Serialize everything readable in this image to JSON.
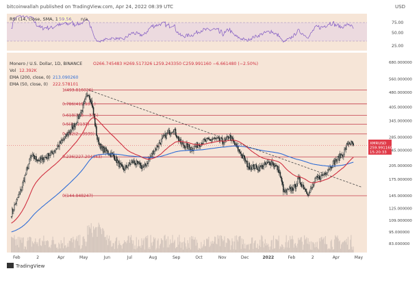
{
  "header": {
    "published": "bitcoinwallah published on TradingView.com, Apr 24, 2022 08:39 UTC",
    "currency": "USD"
  },
  "rsi_panel": {
    "label": "RSI (14, close, SMA, 14, 2)",
    "value": "59.56",
    "na": "n/a",
    "ticks": [
      "75.00",
      "50.00",
      "25.00"
    ],
    "colors": {
      "line": "#7e57c2",
      "band": "#e8d6e2"
    }
  },
  "legend": {
    "title": "Monero / U.S. Dollar, 1D, BINANCE",
    "ohlc": "O266.745483 H269.517326 L259.243350 C259.991160 −6.661480 (−2.50%)",
    "volume_label": "Vol",
    "volume_value": "12.392K",
    "ema200_label": "EMA (200, close, 0)",
    "ema200_value": "213.090260",
    "ema50_label": "EMA (50, close, 0)",
    "ema50_value": "222.578101"
  },
  "price_tag": {
    "symbol": "XMRUSD",
    "price": "259.991160",
    "countdown": "15:20:33"
  },
  "footer": {
    "brand": "TradingView"
  },
  "colors": {
    "bg": "#f6e5d7",
    "candle": "#1c2526",
    "fib": "#c43a4a",
    "ema200": "#2f6dd6",
    "ema50": "#cf2d3e",
    "trend": "#444444",
    "volume": "#cdbfb8",
    "tag": "#e03a48"
  },
  "chart_data": {
    "type": "candlestick",
    "x_ticks": [
      "Feb",
      "2",
      "Apr",
      "May",
      "Jun",
      "Jul",
      "Aug",
      "Sep",
      "Oct",
      "Nov",
      "Dec",
      "2022",
      "Feb",
      "2",
      "Apr",
      "May"
    ],
    "y_ticks": [
      680,
      560,
      480,
      405,
      345,
      285,
      245,
      205,
      175,
      145,
      125,
      109,
      95,
      83
    ],
    "y_scale": "log",
    "fibonacci_levels": [
      {
        "label": "1(493.816026)",
        "value": 493.816026
      },
      {
        "label": "0.786(419.93…)",
        "value": 419.93
      },
      {
        "label": "0.618(368.…335)",
        "value": 368.3
      },
      {
        "label": "0.5(3…2137)",
        "value": 332.1
      },
      {
        "label": "0.382(2…3939)",
        "value": 296.4
      },
      {
        "label": "0.236(227.204643)",
        "value": 227.204643
      },
      {
        "label": "0(144.848247)",
        "value": 144.848247
      }
    ],
    "close_keypoints": [
      {
        "date": "2021-01-25",
        "close": 118
      },
      {
        "date": "2021-02-05",
        "close": 148
      },
      {
        "date": "2021-02-20",
        "close": 228
      },
      {
        "date": "2021-03-05",
        "close": 218
      },
      {
        "date": "2021-03-20",
        "close": 238
      },
      {
        "date": "2021-04-05",
        "close": 280
      },
      {
        "date": "2021-04-20",
        "close": 335
      },
      {
        "date": "2021-05-01",
        "close": 410
      },
      {
        "date": "2021-05-07",
        "close": 480
      },
      {
        "date": "2021-05-12",
        "close": 420
      },
      {
        "date": "2021-05-19",
        "close": 280
      },
      {
        "date": "2021-05-25",
        "close": 250
      },
      {
        "date": "2021-06-10",
        "close": 230
      },
      {
        "date": "2021-06-22",
        "close": 195
      },
      {
        "date": "2021-07-05",
        "close": 215
      },
      {
        "date": "2021-07-20",
        "close": 200
      },
      {
        "date": "2021-08-01",
        "close": 240
      },
      {
        "date": "2021-08-15",
        "close": 285
      },
      {
        "date": "2021-08-28",
        "close": 315
      },
      {
        "date": "2021-09-07",
        "close": 265
      },
      {
        "date": "2021-09-22",
        "close": 250
      },
      {
        "date": "2021-10-05",
        "close": 270
      },
      {
        "date": "2021-10-20",
        "close": 280
      },
      {
        "date": "2021-11-05",
        "close": 270
      },
      {
        "date": "2021-11-10",
        "close": 290
      },
      {
        "date": "2021-11-26",
        "close": 235
      },
      {
        "date": "2021-12-05",
        "close": 205
      },
      {
        "date": "2021-12-20",
        "close": 200
      },
      {
        "date": "2022-01-05",
        "close": 215
      },
      {
        "date": "2022-01-15",
        "close": 195
      },
      {
        "date": "2022-01-22",
        "close": 150
      },
      {
        "date": "2022-02-05",
        "close": 160
      },
      {
        "date": "2022-02-10",
        "close": 175
      },
      {
        "date": "2022-02-20",
        "close": 155
      },
      {
        "date": "2022-02-24",
        "close": 148
      },
      {
        "date": "2022-03-05",
        "close": 175
      },
      {
        "date": "2022-03-15",
        "close": 185
      },
      {
        "date": "2022-03-30",
        "close": 215
      },
      {
        "date": "2022-04-10",
        "close": 235
      },
      {
        "date": "2022-04-18",
        "close": 270
      },
      {
        "date": "2022-04-24",
        "close": 259.99116
      }
    ],
    "trendline": [
      {
        "date": "2021-05-07",
        "value": 493.8
      },
      {
        "date": "2022-05-05",
        "value": 160
      }
    ]
  }
}
